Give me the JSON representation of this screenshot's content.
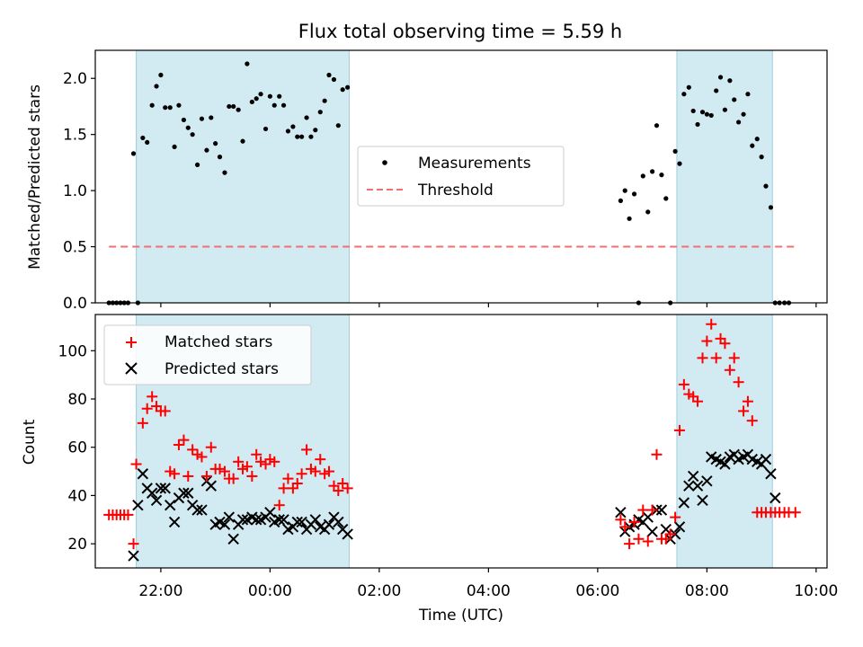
{
  "chart_data": [
    {
      "type": "scatter",
      "title": "Flux total observing time = 5.59 h",
      "ylabel": "Matched/Predicted stars",
      "xlabel": "",
      "xlim_hours": [
        -3.2,
        10.2
      ],
      "ylim": [
        0,
        2.25
      ],
      "y_ticks": [
        "0.0",
        "0.5",
        "1.0",
        "1.5",
        "2.0"
      ],
      "legend_position": "center",
      "shaded_intervals_hours": [
        [
          -2.45,
          1.45
        ],
        [
          7.45,
          9.2
        ]
      ],
      "threshold": {
        "name": "Threshold",
        "value": 0.5,
        "x_start": -2.95,
        "x_end": 9.6
      },
      "series": [
        {
          "name": "Measurements",
          "x_hours": [
            -2.95,
            -2.88,
            -2.81,
            -2.74,
            -2.67,
            -2.6,
            -2.5,
            -2.33,
            -2.25,
            -2.16,
            -2.08,
            -2.0,
            -1.92,
            -1.83,
            -1.75,
            -1.67,
            -1.58,
            -1.5,
            -1.42,
            -1.33,
            -1.25,
            -1.16,
            -1.08,
            -1.0,
            -0.92,
            -0.83,
            -0.75,
            -0.67,
            -0.58,
            -0.5,
            -0.42,
            -0.33,
            -0.25,
            -0.17,
            -0.08,
            0.0,
            0.08,
            0.17,
            0.25,
            0.33,
            0.42,
            0.5,
            0.58,
            0.67,
            0.75,
            0.83,
            0.92,
            1.0,
            1.08,
            1.17,
            1.25,
            1.33,
            1.42,
            -2.42,
            6.42,
            6.5,
            6.58,
            6.67,
            6.75,
            6.83,
            6.92,
            7.0,
            7.08,
            7.17,
            7.25,
            7.33,
            7.42,
            7.5,
            7.58,
            7.67,
            7.75,
            7.83,
            7.92,
            8.0,
            8.08,
            8.17,
            8.25,
            8.33,
            8.42,
            8.5,
            8.58,
            8.67,
            8.75,
            8.83,
            8.92,
            9.0,
            9.08,
            9.17,
            9.25,
            9.33,
            9.42,
            9.5
          ],
          "y": [
            0,
            0,
            0,
            0,
            0,
            0,
            1.33,
            1.47,
            1.43,
            1.76,
            1.93,
            2.03,
            1.74,
            1.74,
            1.39,
            1.76,
            1.63,
            1.56,
            1.5,
            1.23,
            1.64,
            1.36,
            1.65,
            1.42,
            1.3,
            1.16,
            1.75,
            1.75,
            1.72,
            1.44,
            2.13,
            1.79,
            1.82,
            1.86,
            1.55,
            1.84,
            1.76,
            1.84,
            1.76,
            1.53,
            1.57,
            1.48,
            1.48,
            1.65,
            1.48,
            1.54,
            1.7,
            1.8,
            2.03,
            1.99,
            1.58,
            1.9,
            1.92,
            0,
            0.91,
            1.0,
            0.75,
            0.97,
            0.0,
            1.13,
            0.81,
            1.17,
            1.58,
            1.14,
            0.93,
            0.0,
            1.35,
            1.24,
            1.86,
            1.92,
            1.71,
            1.59,
            1.7,
            1.68,
            1.67,
            1.89,
            2.01,
            1.72,
            1.98,
            1.81,
            1.61,
            1.68,
            1.86,
            1.4,
            1.46,
            1.3,
            1.04,
            0.85,
            0,
            0,
            0,
            0
          ],
          "color": "#000000",
          "marker": "dot"
        }
      ]
    },
    {
      "type": "scatter",
      "ylabel": "Count",
      "xlabel": "Time (UTC)",
      "xlim_hours": [
        -3.2,
        10.2
      ],
      "ylim": [
        10,
        115
      ],
      "x_tick_values": [
        -2,
        0,
        2,
        4,
        6,
        8,
        10
      ],
      "x_ticks": [
        "22:00",
        "00:00",
        "02:00",
        "04:00",
        "06:00",
        "08:00",
        "10:00"
      ],
      "y_ticks": [
        "20",
        "40",
        "60",
        "80",
        "100"
      ],
      "legend_position": "top-left",
      "shaded_intervals_hours": [
        [
          -2.45,
          1.45
        ],
        [
          7.45,
          9.2
        ]
      ],
      "series": [
        {
          "name": "Matched stars",
          "marker": "plus",
          "color": "#ff0000",
          "x_hours": [
            -2.95,
            -2.88,
            -2.81,
            -2.74,
            -2.67,
            -2.6,
            -2.5,
            -2.45,
            -2.33,
            -2.25,
            -2.16,
            -2.08,
            -2.0,
            -1.92,
            -1.83,
            -1.75,
            -1.67,
            -1.58,
            -1.5,
            -1.42,
            -1.33,
            -1.25,
            -1.16,
            -1.08,
            -1.0,
            -0.92,
            -0.83,
            -0.75,
            -0.67,
            -0.58,
            -0.5,
            -0.42,
            -0.33,
            -0.25,
            -0.17,
            -0.08,
            0.0,
            0.08,
            0.17,
            0.25,
            0.33,
            0.42,
            0.5,
            0.58,
            0.67,
            0.75,
            0.83,
            0.92,
            1.0,
            1.08,
            1.17,
            1.25,
            1.33,
            1.42,
            6.42,
            6.5,
            6.58,
            6.67,
            6.75,
            6.83,
            6.92,
            7.0,
            7.08,
            7.17,
            7.25,
            7.33,
            7.42,
            7.5,
            7.58,
            7.67,
            7.75,
            7.83,
            7.92,
            8.0,
            8.08,
            8.17,
            8.25,
            8.33,
            8.42,
            8.5,
            8.58,
            8.67,
            8.75,
            8.83,
            8.92,
            9.0,
            9.08,
            9.17,
            9.25,
            9.33,
            9.42,
            9.5,
            9.62
          ],
          "y": [
            32,
            32,
            32,
            32,
            32,
            32,
            20,
            53,
            70,
            76,
            81,
            77,
            75,
            75,
            50,
            49,
            61,
            63,
            48,
            59,
            57,
            56,
            48,
            60,
            51,
            51,
            50,
            47,
            47,
            54,
            51,
            52,
            48,
            57,
            54,
            53,
            55,
            54,
            36,
            43,
            47,
            43,
            45,
            49,
            59,
            51,
            50,
            55,
            49,
            50,
            44,
            42,
            45,
            43,
            30,
            27,
            20,
            29,
            22,
            34,
            21,
            34,
            57,
            22,
            22,
            24,
            31,
            67,
            86,
            82,
            81,
            79,
            97,
            104,
            111,
            97,
            105,
            103,
            92,
            97,
            87,
            75,
            79,
            71,
            33,
            33,
            33,
            33,
            33,
            33,
            33,
            33,
            33
          ],
          "x_hours_fixed": true
        },
        {
          "name": "Predicted stars",
          "marker": "x",
          "color": "#000000",
          "x_hours": [
            -2.5,
            -2.42,
            -2.33,
            -2.25,
            -2.16,
            -2.08,
            -2.0,
            -1.92,
            -1.83,
            -1.75,
            -1.67,
            -1.58,
            -1.5,
            -1.42,
            -1.33,
            -1.25,
            -1.16,
            -1.08,
            -1.0,
            -0.92,
            -0.83,
            -0.75,
            -0.67,
            -0.58,
            -0.5,
            -0.42,
            -0.33,
            -0.25,
            -0.17,
            -0.08,
            0.0,
            0.08,
            0.17,
            0.25,
            0.33,
            0.42,
            0.5,
            0.58,
            0.67,
            0.75,
            0.83,
            0.92,
            1.0,
            1.08,
            1.17,
            1.25,
            1.33,
            1.42,
            6.42,
            6.5,
            6.58,
            6.67,
            6.75,
            6.83,
            6.92,
            7.0,
            7.08,
            7.17,
            7.25,
            7.33,
            7.42,
            7.5,
            7.58,
            7.67,
            7.75,
            7.83,
            7.92,
            8.0,
            8.08,
            8.17,
            8.25,
            8.33,
            8.42,
            8.5,
            8.58,
            8.67,
            8.75,
            8.83,
            8.92,
            9.0,
            9.08,
            9.17,
            9.25
          ],
          "y": [
            15,
            36,
            49,
            43,
            41,
            38,
            43,
            43,
            36,
            29,
            39,
            41,
            41,
            36,
            34,
            34,
            46,
            44,
            28,
            29,
            28,
            31,
            22,
            28,
            30,
            30,
            31,
            30,
            30,
            31,
            33,
            29,
            30,
            30,
            26,
            27,
            29,
            29,
            26,
            28,
            30,
            27,
            26,
            28,
            31,
            29,
            26,
            24,
            33,
            25,
            27,
            28,
            30,
            29,
            31,
            25,
            34,
            34,
            26,
            22,
            24,
            27,
            37,
            44,
            48,
            44,
            38,
            46,
            56,
            55,
            54,
            53,
            56,
            57,
            55,
            56,
            57,
            55,
            54,
            53,
            55,
            49,
            39
          ]
        }
      ]
    }
  ]
}
